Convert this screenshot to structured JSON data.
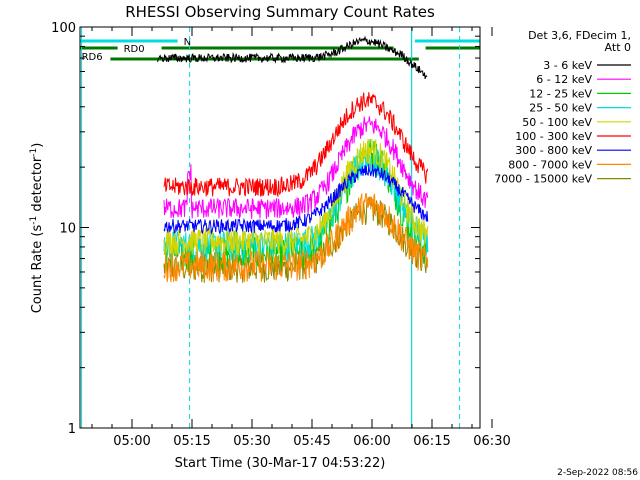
{
  "chart_data": {
    "type": "line",
    "title": "RHESSI Observing Summary Count Rates",
    "xlabel": "Start Time (30-Mar-17 04:53:22)",
    "ylabel_main": "Count Rate (s",
    "ylabel_sup1": "-1",
    "ylabel_mid": " detector",
    "ylabel_sup2": "-1",
    "ylabel_end": ")",
    "y_scale": "log",
    "ylim": [
      1,
      100
    ],
    "xlim_minutes": [
      -6.4,
      93.6
    ],
    "x_tick_labels": [
      "05:00",
      "05:15",
      "05:30",
      "05:45",
      "06:00",
      "06:15",
      "06:30"
    ],
    "x_tick_minutes": [
      6.6,
      21.6,
      36.6,
      51.6,
      66.6,
      81.6,
      96.6
    ],
    "y_tick_labels": [
      "1",
      "10",
      "100"
    ],
    "y_tick_values": [
      1,
      10,
      100
    ],
    "legend_header": [
      "Det 3,6, FDecim 1,",
      "Att 0"
    ],
    "legend_position": "right",
    "series": [
      {
        "name": "3 - 6 keV",
        "color": "#000000"
      },
      {
        "name": "6 - 12 keV",
        "color": "#ff00ff"
      },
      {
        "name": "12 - 25 keV",
        "color": "#00cc00"
      },
      {
        "name": "25 - 50 keV",
        "color": "#00dddd"
      },
      {
        "name": "50 - 100 keV",
        "color": "#d4d400"
      },
      {
        "name": "100 - 300 keV",
        "color": "#ff0000"
      },
      {
        "name": "300 - 800 keV",
        "color": "#0000ff"
      },
      {
        "name": "800 - 7000 keV",
        "color": "#ff8800"
      },
      {
        "name": "7000 - 15000 keV",
        "color": "#888800"
      }
    ],
    "flags": [
      {
        "label": "N",
        "color": "#00dddd"
      },
      {
        "label": "RD0",
        "color": "#007700"
      },
      {
        "label": "RD6",
        "color": "#007700"
      }
    ],
    "footer": "2-Sep-2022 08:56"
  }
}
